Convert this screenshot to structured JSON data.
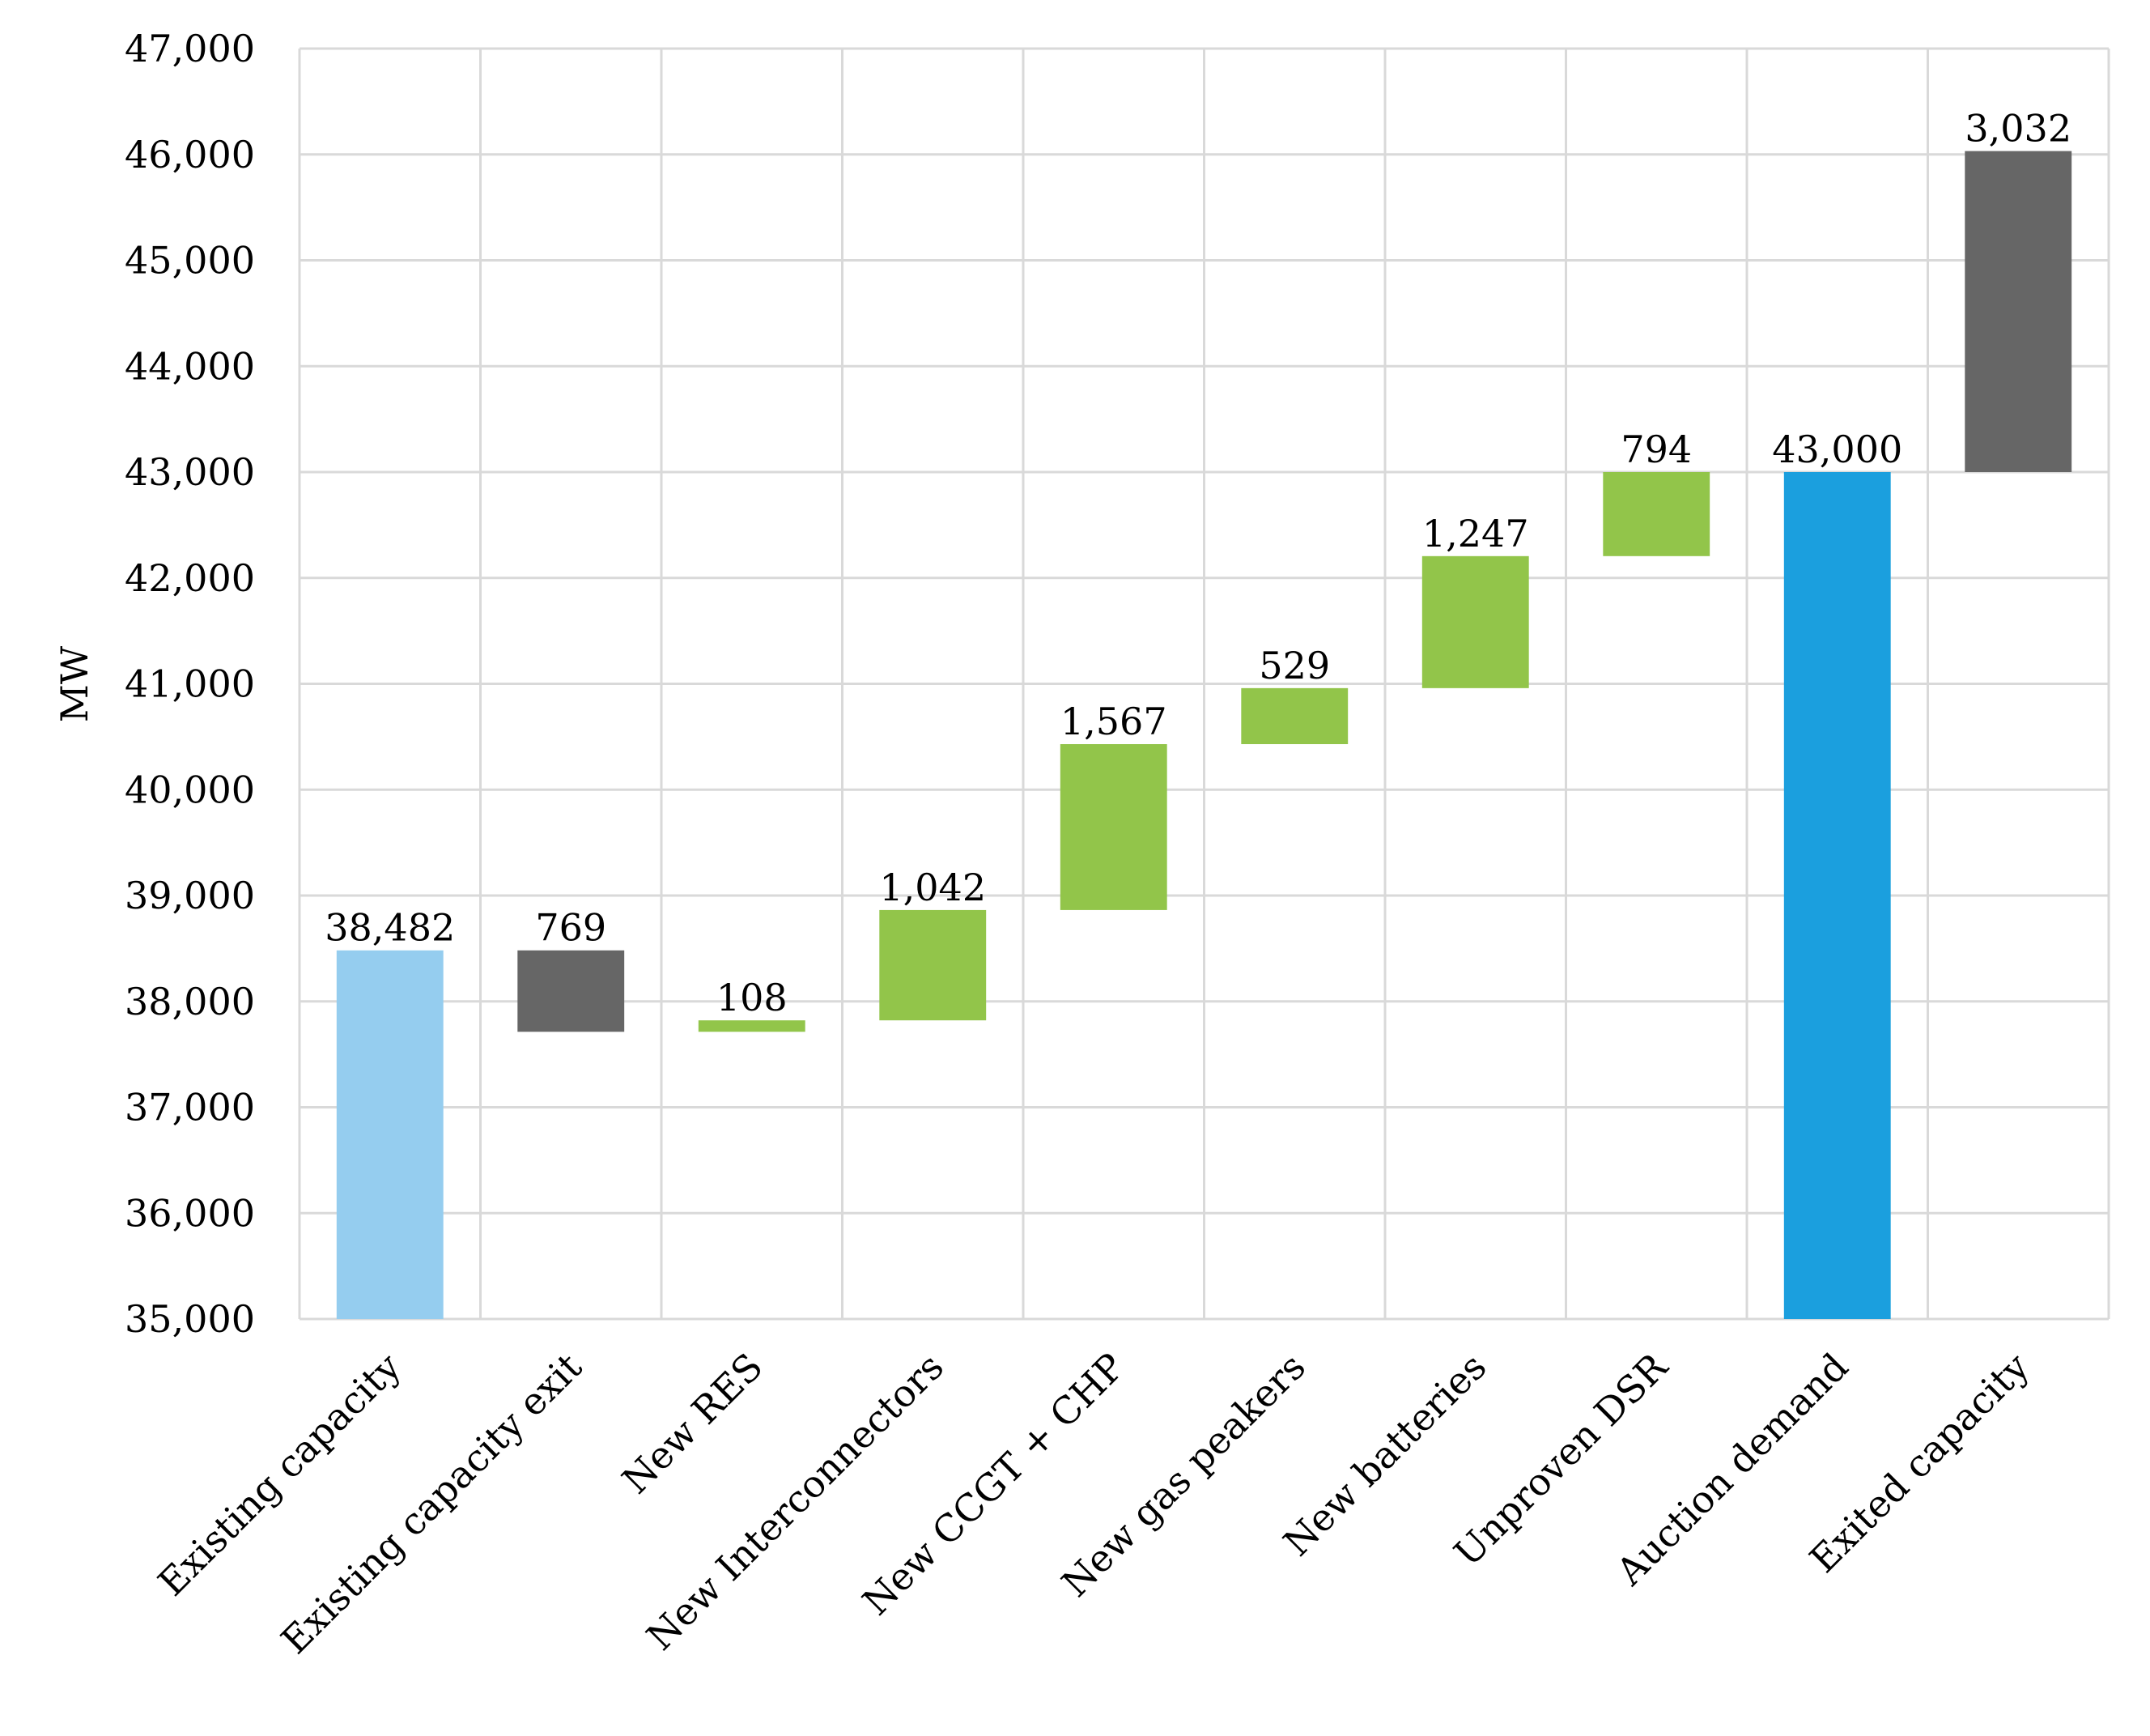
{
  "chart_data": {
    "type": "bar",
    "subtype": "waterfall",
    "title": "",
    "xlabel": "",
    "ylabel": "MW",
    "ylim": [
      35000,
      47000
    ],
    "yticks": [
      35000,
      36000,
      37000,
      38000,
      39000,
      40000,
      41000,
      42000,
      43000,
      44000,
      45000,
      46000,
      47000
    ],
    "ytick_labels": [
      "35,000",
      "36,000",
      "37,000",
      "38,000",
      "39,000",
      "40,000",
      "41,000",
      "42,000",
      "43,000",
      "44,000",
      "45,000",
      "46,000",
      "47,000"
    ],
    "grid": true,
    "legend": "none",
    "categories": [
      "Existing capacity",
      "Existing capacity exit",
      "New RES",
      "New Interconnectors",
      "New CCGT + CHP",
      "New gas peakers",
      "New batteries",
      "Unproven DSR",
      "Auction demand",
      "Exited capacity"
    ],
    "bars": [
      {
        "category": "Existing capacity",
        "kind": "total",
        "start": 35000,
        "end": 38482,
        "value": 38482,
        "label": "38,482",
        "color": "#95CDEF"
      },
      {
        "category": "Existing capacity exit",
        "kind": "decrease",
        "start": 38482,
        "end": 37713,
        "value": -769,
        "label": "769",
        "color": "#666666"
      },
      {
        "category": "New RES",
        "kind": "increase",
        "start": 37713,
        "end": 37821,
        "value": 108,
        "label": "108",
        "color": "#92C54A"
      },
      {
        "category": "New Interconnectors",
        "kind": "increase",
        "start": 37821,
        "end": 38863,
        "value": 1042,
        "label": "1,042",
        "color": "#92C54A"
      },
      {
        "category": "New CCGT + CHP",
        "kind": "increase",
        "start": 38863,
        "end": 40430,
        "value": 1567,
        "label": "1,567",
        "color": "#92C54A"
      },
      {
        "category": "New gas peakers",
        "kind": "increase",
        "start": 40430,
        "end": 40959,
        "value": 529,
        "label": "529",
        "color": "#92C54A"
      },
      {
        "category": "New batteries",
        "kind": "increase",
        "start": 40959,
        "end": 42206,
        "value": 1247,
        "label": "1,247",
        "color": "#92C54A"
      },
      {
        "category": "Unproven DSR",
        "kind": "increase",
        "start": 42206,
        "end": 43000,
        "value": 794,
        "label": "794",
        "color": "#92C54A"
      },
      {
        "category": "Auction demand",
        "kind": "total",
        "start": 35000,
        "end": 43000,
        "value": 43000,
        "label": "43,000",
        "color": "#1B9FDE"
      },
      {
        "category": "Exited capacity",
        "kind": "floating",
        "start": 43000,
        "end": 46032,
        "value": 3032,
        "label": "3,032",
        "color": "#666666"
      }
    ],
    "colors": {
      "existing_total": "#95CDEF",
      "decrease": "#666666",
      "increase": "#92C54A",
      "demand_total": "#1B9FDE",
      "gridline": "#D9D9D9"
    }
  }
}
